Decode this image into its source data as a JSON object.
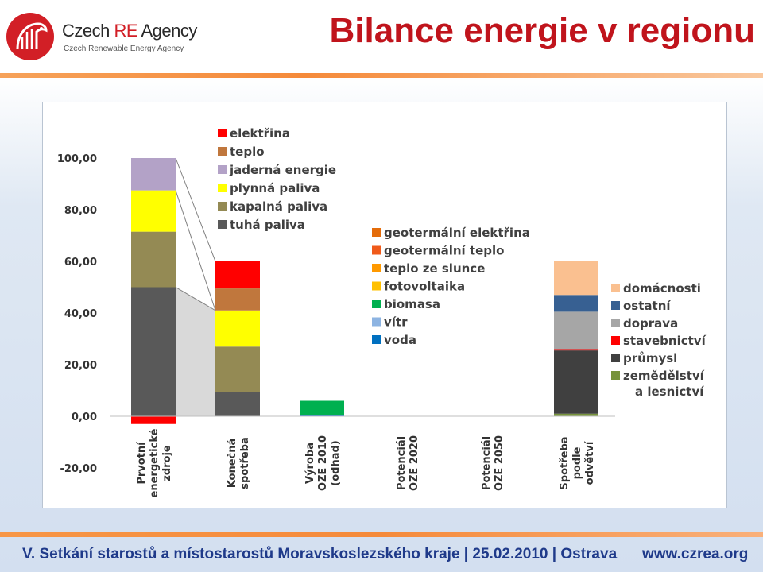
{
  "header": {
    "logo_name_a": "Czech ",
    "logo_name_b": "RE",
    "logo_name_c": " Agency",
    "logo_sub": "Czech Renewable Energy Agency",
    "title": "Bilance energie v regionu"
  },
  "footer": {
    "text": "V. Setkání starostů a místostarostů Moravskoslezského kraje  |  25.02.2010  |  Ostrava",
    "website": "www.czrea.org"
  },
  "colors": {
    "accent": "#c0141c",
    "footer_text": "#1f3a8a"
  },
  "chart_data": {
    "type": "bar",
    "stacked": true,
    "ylim": [
      -20,
      100
    ],
    "yticks": [
      "100,00",
      "80,00",
      "60,00",
      "40,00",
      "20,00",
      "0,00",
      "-20,00"
    ],
    "ytick_values": [
      100,
      80,
      60,
      40,
      20,
      0,
      -20
    ],
    "grid": false,
    "categories": [
      [
        "Prvotní",
        "energetické",
        "zdroje"
      ],
      [
        "Konečná",
        "spotřeba"
      ],
      [
        "Výroba",
        "OZE 2010",
        "(odhad)"
      ],
      [
        "Potenciál",
        "OZE 2020"
      ],
      [
        "Potenciál",
        "OZE 2050"
      ],
      [
        "Spotřeba",
        "podle",
        "odvětví"
      ]
    ],
    "legend_groups": [
      {
        "position": "top-left",
        "entries": [
          {
            "name": "elektřina",
            "color": "#ff0000"
          },
          {
            "name": "teplo",
            "color": "#c0773d"
          },
          {
            "name": "jaderná energie",
            "color": "#b3a2c7"
          },
          {
            "name": "plynná paliva",
            "color": "#ffff00"
          },
          {
            "name": "kapalná paliva",
            "color": "#948a54"
          },
          {
            "name": "tuhá paliva",
            "color": "#595959"
          }
        ]
      },
      {
        "position": "center",
        "entries": [
          {
            "name": "geotermální elektřina",
            "color": "#e46c0a"
          },
          {
            "name": "geotermální teplo",
            "color": "#f05a1a"
          },
          {
            "name": "teplo ze slunce",
            "color": "#ff9900"
          },
          {
            "name": "fotovoltaika",
            "color": "#ffc000"
          },
          {
            "name": "biomasa",
            "color": "#00b050"
          },
          {
            "name": "vítr",
            "color": "#8db4e2"
          },
          {
            "name": "voda",
            "color": "#0070c0"
          }
        ]
      },
      {
        "position": "right",
        "entries": [
          {
            "name": "domácnosti",
            "color": "#fac090"
          },
          {
            "name": "ostatní",
            "color": "#376092"
          },
          {
            "name": "doprava",
            "color": "#a6a6a6"
          },
          {
            "name": "stavebnictví",
            "color": "#ff0000"
          },
          {
            "name": "průmysl",
            "color": "#404040"
          },
          {
            "name": "zemědělství a lesnictví",
            "color": "#77933c"
          }
        ]
      }
    ],
    "stacks": [
      {
        "category_index": 0,
        "segments": [
          {
            "series": "elektřina",
            "value": -3,
            "color": "#ff0000"
          },
          {
            "series": "tuhá paliva",
            "value": 50,
            "color": "#595959"
          },
          {
            "series": "kapalná paliva",
            "value": 21.5,
            "color": "#948a54"
          },
          {
            "series": "plynná paliva",
            "value": 16,
            "color": "#ffff00"
          },
          {
            "series": "jaderná energie",
            "value": 12.5,
            "color": "#b3a2c7"
          }
        ]
      },
      {
        "category_index": 1,
        "segments": [
          {
            "series": "tuhá paliva",
            "value": 9.5,
            "color": "#595959"
          },
          {
            "series": "kapalná paliva",
            "value": 17.5,
            "color": "#948a54"
          },
          {
            "series": "plynná paliva",
            "value": 14,
            "color": "#ffff00"
          },
          {
            "series": "teplo",
            "value": 8.5,
            "color": "#c0773d"
          },
          {
            "series": "elektřina",
            "value": 10.5,
            "color": "#ff0000"
          }
        ]
      },
      {
        "category_index": 2,
        "segments": [
          {
            "series": "voda",
            "value": 0.3,
            "color": "#0070c0"
          },
          {
            "series": "vítr",
            "value": 0.2,
            "color": "#8db4e2"
          },
          {
            "series": "biomasa",
            "value": 5.5,
            "color": "#00b050"
          }
        ]
      },
      {
        "category_index": 5,
        "segments": [
          {
            "series": "zemědělství a lesnictví",
            "value": 1,
            "color": "#77933c"
          },
          {
            "series": "průmysl",
            "value": 24.5,
            "color": "#404040"
          },
          {
            "series": "stavebnictví",
            "value": 0.5,
            "color": "#ff0000"
          },
          {
            "series": "doprava",
            "value": 14.5,
            "color": "#a6a6a6"
          },
          {
            "series": "ostatní",
            "value": 6.5,
            "color": "#376092"
          },
          {
            "series": "domácnosti",
            "value": 13,
            "color": "#fac090"
          }
        ]
      }
    ]
  }
}
